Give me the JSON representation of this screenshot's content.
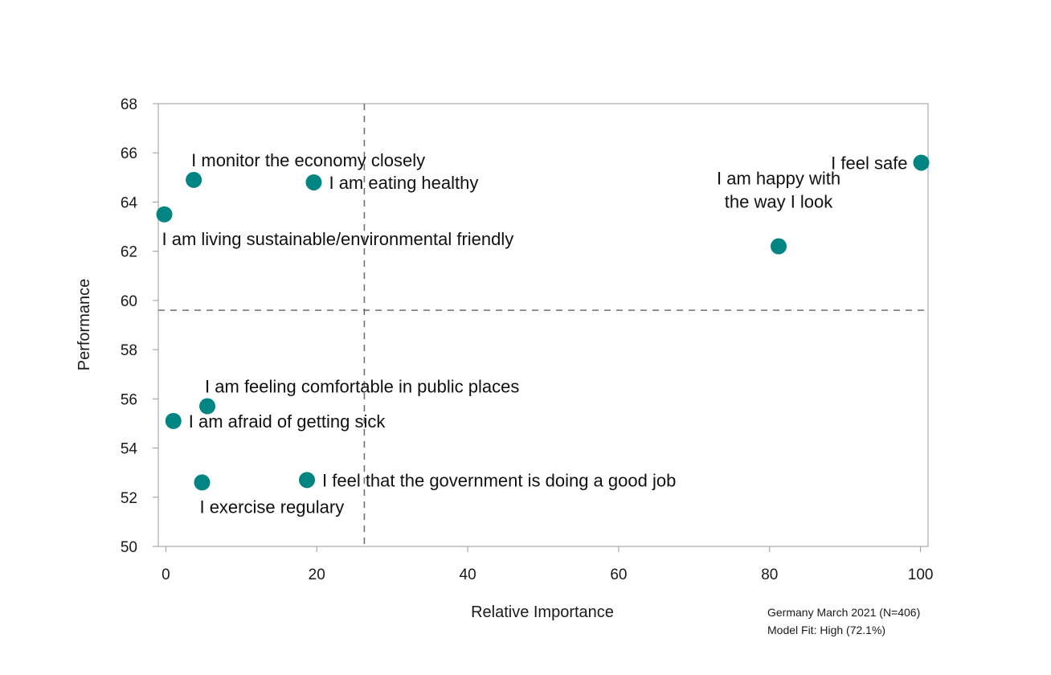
{
  "chart_data": {
    "type": "scatter",
    "xlabel": "Relative Importance",
    "ylabel": "Performance",
    "xlim": [
      -1,
      101
    ],
    "ylim": [
      50,
      68
    ],
    "x_ticks": [
      0,
      20,
      40,
      60,
      80,
      100
    ],
    "y_ticks": [
      50,
      52,
      54,
      56,
      58,
      60,
      62,
      64,
      66,
      68
    ],
    "reference_lines": {
      "x": 26.3,
      "y": 59.6
    },
    "grid": false,
    "point_color": "#008583",
    "reference_line_color": "#6e6e78",
    "points": [
      {
        "label_lines": [
          "I monitor the economy closely"
        ],
        "x": 3.7,
        "y": 64.9,
        "label_pos": "above-right"
      },
      {
        "label_lines": [
          "I am eating healthy"
        ],
        "x": 19.6,
        "y": 64.8,
        "label_pos": "right"
      },
      {
        "label_lines": [
          "I am living sustainable/environmental friendly"
        ],
        "x": -0.2,
        "y": 63.5,
        "label_pos": "below-right"
      },
      {
        "label_lines": [
          "I feel safe"
        ],
        "x": 100.1,
        "y": 65.6,
        "label_pos": "left"
      },
      {
        "label_lines": [
          "I am happy with",
          "the way I look"
        ],
        "x": 81.2,
        "y": 62.2,
        "label_pos": "above"
      },
      {
        "label_lines": [
          "I am feeling comfortable in public places"
        ],
        "x": 5.5,
        "y": 55.7,
        "label_pos": "above-right"
      },
      {
        "label_lines": [
          "I am afraid of getting sick"
        ],
        "x": 1.0,
        "y": 55.1,
        "label_pos": "right"
      },
      {
        "label_lines": [
          "I feel that the government is doing a good job"
        ],
        "x": 18.7,
        "y": 52.7,
        "label_pos": "right"
      },
      {
        "label_lines": [
          "I exercise regulary"
        ],
        "x": 4.8,
        "y": 52.6,
        "label_pos": "below-right"
      }
    ]
  },
  "footnote": {
    "line1": "Germany March 2021 (N=406)",
    "line2": "Model Fit: High (72.1%)"
  }
}
